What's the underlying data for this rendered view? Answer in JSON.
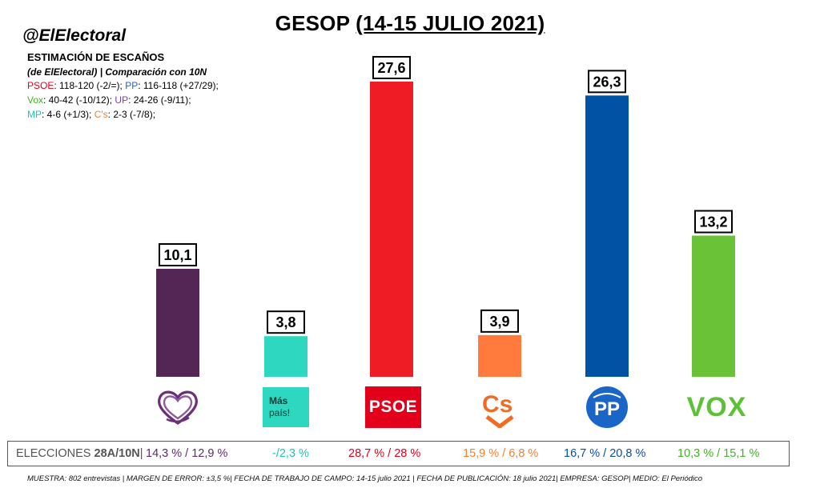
{
  "header": {
    "title_prefix": "GESOP ",
    "title_underlined": "(14-15 JULIO 2021)",
    "handle": "@ElElectoral",
    "subtitle": "ESTIMACIÓN DE ESCAÑOS",
    "subtitle2": "(de ElElectoral) | Comparación con 10N"
  },
  "seats": [
    {
      "party": "PSOE",
      "text": ": 118-120 (-2/=); ",
      "color": "#e3001b"
    },
    {
      "party": "PP",
      "text": ": 116-118 (+27/29);",
      "color": "#1a66c8"
    },
    {
      "party": "Vox",
      "text": ": 40-42 (-10/12); ",
      "color": "#43b02a"
    },
    {
      "party": "UP",
      "text": ": 24-26 (-9/11);",
      "color": "#7b3fa0"
    },
    {
      "party": "MP",
      "text": ": 4-6 (+1/3); ",
      "color": "#1ec7b0"
    },
    {
      "party": "C's",
      "text": ": 2-3 (-7/8);",
      "color": "#f08030"
    }
  ],
  "chart_data": {
    "type": "bar",
    "title": "GESOP (14-15 JULIO 2021)",
    "categories": [
      "UP",
      "Más País",
      "PSOE",
      "Cs",
      "PP",
      "VOX"
    ],
    "values": [
      10.1,
      3.8,
      27.6,
      3.9,
      26.3,
      13.2
    ],
    "value_labels": [
      "10,1",
      "3,8",
      "27,6",
      "3,9",
      "26,3",
      "13,2"
    ],
    "colors": [
      "#542656",
      "#2ed8c0",
      "#ef1c25",
      "#ff7a3c",
      "#0151a4",
      "#6ac236"
    ],
    "ylim": [
      0,
      30
    ],
    "grid": false,
    "legend": "none"
  },
  "logos": {
    "mp_line1": "Más",
    "mp_line2": "país!",
    "psoe": "PSOE",
    "cs": "Cs",
    "pp": "PP",
    "vox": "VOX"
  },
  "results": {
    "label_prefix": "ELECCIONES ",
    "label_bold": "28A/10N",
    "items": [
      {
        "text": "14,3 % / 12,9 %",
        "color": "#5b2b6b"
      },
      {
        "text": "-/2,3 %",
        "color": "#1fc6b2"
      },
      {
        "text": "28,7  % / 28 %",
        "color": "#e3001b"
      },
      {
        "text": "15,9 % / 6,8 %",
        "color": "#f08030"
      },
      {
        "text": "16,7 % / 20,8 %",
        "color": "#0b4ea2"
      },
      {
        "text": "10,3 % / 15,1 %",
        "color": "#43b02a"
      }
    ]
  },
  "footer": "MUESTRA: 802 entrevistas | MARGEN DE ERROR: ±3,5 %| FECHA DE TRABAJO DE CAMPO: 14-15 julio 2021 | FECHA DE PUBLICACIÓN: 18 julio 2021| EMPRESA: GESOP| MEDIO: El Periódico"
}
